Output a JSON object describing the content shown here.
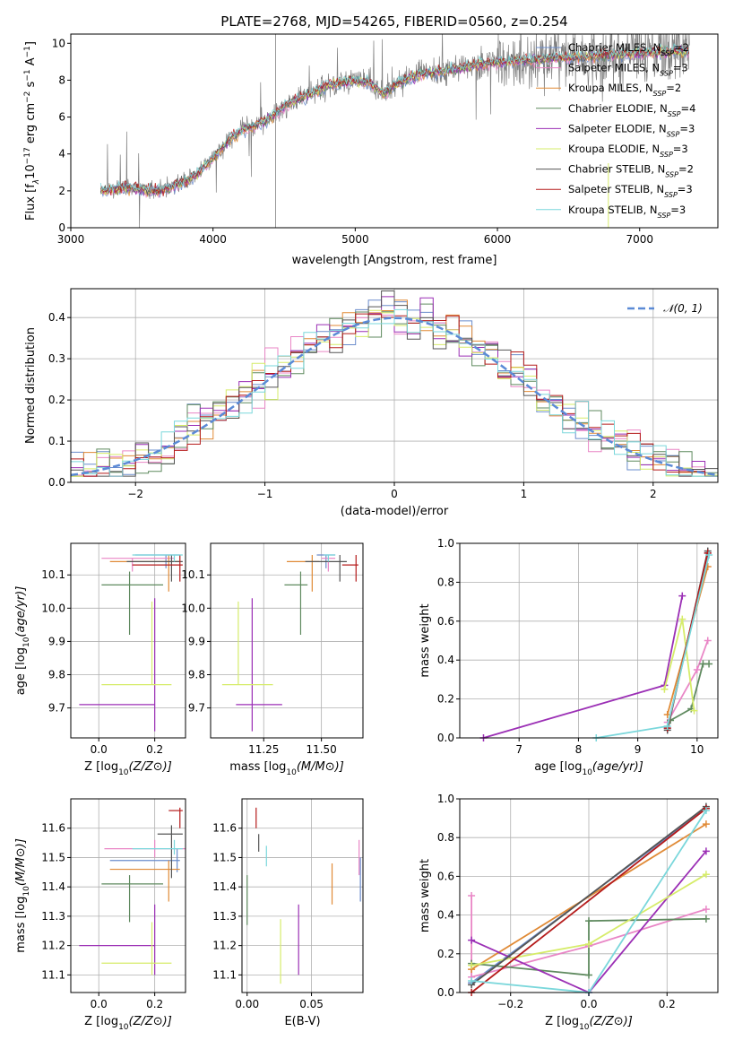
{
  "figure": {
    "title": "PLATE=2768, MJD=54265, FIBERID=0560, z=0.254"
  },
  "colors": {
    "Chabrier MILES": "#6a8ccc",
    "Salpeter MILES": "#e986c6",
    "Kroupa MILES": "#e08a36",
    "Chabrier ELODIE": "#5f8a5f",
    "Salpeter ELODIE": "#9b2fb5",
    "Kroupa ELODIE": "#d6ec6a",
    "Chabrier STELIB": "#555555",
    "Salpeter STELIB": "#b51b1b",
    "Kroupa STELIB": "#7ad7db",
    "data": "#808080",
    "normal": "#5b8ad6"
  },
  "chart_data": [
    {
      "id": "spectrum",
      "type": "line",
      "xlabel": "wavelength [Angstrom, rest frame]",
      "ylabel": "Flux [f_λ 10^-17 erg cm^-2 s^-1 A^-1]",
      "xlim": [
        3000,
        7550
      ],
      "ylim": [
        0,
        10.5
      ],
      "xticks": [
        3000,
        4000,
        5000,
        6000,
        7000
      ],
      "yticks": [
        0,
        2,
        4,
        6,
        8,
        10
      ],
      "legend_position": "top-right",
      "legend": [
        {
          "model": "Chabrier MILES",
          "label": "Chabrier MILES, N",
          "sub": "SSP",
          "suffix": "=2"
        },
        {
          "model": "Salpeter MILES",
          "label": "Salpeter MILES, N",
          "sub": "SSP",
          "suffix": "=3"
        },
        {
          "model": "Kroupa MILES",
          "label": "Kroupa MILES, N",
          "sub": "SSP",
          "suffix": "=2"
        },
        {
          "model": "Chabrier ELODIE",
          "label": "Chabrier ELODIE, N",
          "sub": "SSP",
          "suffix": "=4"
        },
        {
          "model": "Salpeter ELODIE",
          "label": "Salpeter ELODIE, N",
          "sub": "SSP",
          "suffix": "=3"
        },
        {
          "model": "Kroupa ELODIE",
          "label": "Kroupa ELODIE, N",
          "sub": "SSP",
          "suffix": "=3"
        },
        {
          "model": "Chabrier STELIB",
          "label": "Chabrier STELIB, N",
          "sub": "SSP",
          "suffix": "=2"
        },
        {
          "model": "Salpeter STELIB",
          "label": "Salpeter STELIB, N",
          "sub": "SSP",
          "suffix": "=3"
        },
        {
          "model": "Kroupa STELIB",
          "label": "Kroupa STELIB, N",
          "sub": "SSP",
          "suffix": "=3"
        }
      ],
      "continuum": {
        "x": [
          3200,
          3300,
          3400,
          3500,
          3600,
          3700,
          3800,
          3900,
          4000,
          4100,
          4200,
          4300,
          4400,
          4500,
          4600,
          4700,
          4800,
          4900,
          5000,
          5100,
          5200,
          5300,
          5400,
          5500,
          5600,
          5700,
          5800,
          5900,
          6000,
          6200,
          6400,
          6600,
          6800,
          7000,
          7200,
          7350
        ],
        "y": [
          2.0,
          2.1,
          2.2,
          2.1,
          2.0,
          2.2,
          2.5,
          3.0,
          3.8,
          4.7,
          5.3,
          5.6,
          6.0,
          6.6,
          7.0,
          7.3,
          7.7,
          7.9,
          8.0,
          7.9,
          7.3,
          7.9,
          8.2,
          8.4,
          8.5,
          8.6,
          8.8,
          8.9,
          9.0,
          9.1,
          9.2,
          9.3,
          9.4,
          9.5,
          9.6,
          9.6
        ]
      }
    },
    {
      "id": "residuals",
      "type": "line",
      "xlabel": "(data-model)/error",
      "ylabel": "Normed distribution",
      "xlim": [
        -2.5,
        2.5
      ],
      "ylim": [
        0,
        0.47
      ],
      "xticks": [
        -2,
        -1,
        0,
        1,
        2
      ],
      "yticks": [
        0.0,
        0.1,
        0.2,
        0.3,
        0.4
      ],
      "legend_position": "top-right",
      "legend_label": "𝒩(0, 1)",
      "normal": {
        "mean": 0,
        "sigma": 1
      }
    },
    {
      "id": "age-vs-Z",
      "type": "scatter",
      "xlabel": "Z [log10(Z/Z⊙)]",
      "ylabel": "age  [log10(age/yr)]",
      "xlim": [
        -0.1,
        0.31
      ],
      "ylim": [
        9.61,
        10.195
      ],
      "xticks": [
        0.0,
        0.2
      ],
      "yticks": [
        9.7,
        9.8,
        9.9,
        10.0,
        10.1
      ],
      "points": [
        {
          "model": "Chabrier MILES",
          "x": 0.24,
          "y": 10.16,
          "xerr": [
            0.11,
            0.05
          ],
          "yerr": [
            0.04,
            0.0
          ]
        },
        {
          "model": "Salpeter MILES",
          "x": 0.12,
          "y": 10.15,
          "xerr": [
            0.11,
            0.15
          ],
          "yerr": [
            0.04,
            0.0
          ]
        },
        {
          "model": "Kroupa MILES",
          "x": 0.25,
          "y": 10.14,
          "xerr": [
            0.21,
            0.04
          ],
          "yerr": [
            0.09,
            0.02
          ]
        },
        {
          "model": "Chabrier ELODIE",
          "x": 0.11,
          "y": 10.07,
          "xerr": [
            0.1,
            0.12
          ],
          "yerr": [
            0.15,
            0.04
          ]
        },
        {
          "model": "Salpeter ELODIE",
          "x": 0.2,
          "y": 9.71,
          "xerr": [
            0.27,
            0.0
          ],
          "yerr": [
            0.08,
            0.32
          ]
        },
        {
          "model": "Kroupa ELODIE",
          "x": 0.19,
          "y": 9.77,
          "xerr": [
            0.18,
            0.07
          ],
          "yerr": [
            0.0,
            0.25
          ]
        },
        {
          "model": "Chabrier STELIB",
          "x": 0.26,
          "y": 10.14,
          "xerr": [
            0.16,
            0.04
          ],
          "yerr": [
            0.06,
            0.02
          ]
        },
        {
          "model": "Salpeter STELIB",
          "x": 0.29,
          "y": 10.13,
          "xerr": [
            0.17,
            0.01
          ],
          "yerr": [
            0.05,
            0.03
          ]
        },
        {
          "model": "Kroupa STELIB",
          "x": 0.27,
          "y": 10.16,
          "xerr": [
            0.15,
            0.03
          ],
          "yerr": [
            0.02,
            0.0
          ]
        }
      ]
    },
    {
      "id": "age-vs-mass",
      "type": "scatter",
      "xlabel": "mass [log10(M/M⊙)]",
      "ylabel": "",
      "xlim": [
        11.02,
        11.68
      ],
      "ylim": [
        9.61,
        10.195
      ],
      "xticks": [
        11.25,
        11.5
      ],
      "yticks": [
        9.7,
        9.8,
        9.9,
        10.0,
        10.1
      ],
      "points": [
        {
          "model": "Chabrier MILES",
          "x": 11.52,
          "y": 10.16,
          "xerr": [
            0.04,
            0.04
          ],
          "yerr": [
            0.04,
            0.0
          ]
        },
        {
          "model": "Salpeter MILES",
          "x": 11.53,
          "y": 10.15,
          "xerr": [
            0.03,
            0.03
          ],
          "yerr": [
            0.04,
            0.0
          ]
        },
        {
          "model": "Kroupa MILES",
          "x": 11.46,
          "y": 10.14,
          "xerr": [
            0.11,
            0.03
          ],
          "yerr": [
            0.09,
            0.02
          ]
        },
        {
          "model": "Chabrier ELODIE",
          "x": 11.41,
          "y": 10.07,
          "xerr": [
            0.07,
            0.03
          ],
          "yerr": [
            0.15,
            0.04
          ]
        },
        {
          "model": "Salpeter ELODIE",
          "x": 11.2,
          "y": 9.71,
          "xerr": [
            0.07,
            0.13
          ],
          "yerr": [
            0.08,
            0.32
          ]
        },
        {
          "model": "Kroupa ELODIE",
          "x": 11.14,
          "y": 9.77,
          "xerr": [
            0.07,
            0.15
          ],
          "yerr": [
            0.0,
            0.25
          ]
        },
        {
          "model": "Chabrier STELIB",
          "x": 11.58,
          "y": 10.14,
          "xerr": [
            0.15,
            0.03
          ],
          "yerr": [
            0.06,
            0.02
          ]
        },
        {
          "model": "Salpeter STELIB",
          "x": 11.65,
          "y": 10.13,
          "xerr": [
            0.06,
            0.01
          ],
          "yerr": [
            0.05,
            0.03
          ]
        },
        {
          "model": "Kroupa STELIB",
          "x": 11.53,
          "y": 10.16,
          "xerr": [
            0.02,
            0.03
          ],
          "yerr": [
            0.02,
            0.0
          ]
        }
      ]
    },
    {
      "id": "weight-vs-age",
      "type": "line",
      "xlabel": "age  [log10(age/yr)]",
      "ylabel": "mass weight",
      "xlim": [
        6.0,
        10.35
      ],
      "ylim": [
        0,
        1.0
      ],
      "xticks": [
        7,
        8,
        9,
        10
      ],
      "yticks": [
        0.0,
        0.2,
        0.4,
        0.6,
        0.8,
        1.0
      ],
      "series": [
        {
          "model": "Chabrier MILES",
          "x": [
            9.5,
            10.18
          ],
          "y": [
            0.05,
            0.95
          ]
        },
        {
          "model": "Salpeter MILES",
          "x": [
            9.5,
            10.0,
            10.18
          ],
          "y": [
            0.08,
            0.35,
            0.5
          ]
        },
        {
          "model": "Kroupa MILES",
          "x": [
            9.5,
            10.18
          ],
          "y": [
            0.12,
            0.88
          ]
        },
        {
          "model": "Chabrier ELODIE",
          "x": [
            9.55,
            9.9,
            10.1,
            10.2
          ],
          "y": [
            0.09,
            0.15,
            0.38,
            0.38
          ]
        },
        {
          "model": "Salpeter ELODIE",
          "x": [
            6.4,
            9.45,
            9.75
          ],
          "y": [
            0.0,
            0.27,
            0.73
          ]
        },
        {
          "model": "Kroupa ELODIE",
          "x": [
            9.45,
            9.75,
            9.95
          ],
          "y": [
            0.25,
            0.61,
            0.14
          ]
        },
        {
          "model": "Chabrier STELIB",
          "x": [
            9.5,
            10.18
          ],
          "y": [
            0.04,
            0.96
          ]
        },
        {
          "model": "Salpeter STELIB",
          "x": [
            9.5,
            10.18
          ],
          "y": [
            0.05,
            0.95
          ]
        },
        {
          "model": "Kroupa STELIB",
          "x": [
            8.3,
            9.5,
            10.2
          ],
          "y": [
            0.0,
            0.06,
            0.94
          ]
        }
      ]
    },
    {
      "id": "mass-vs-Z",
      "type": "scatter",
      "xlabel": "Z [log10(Z/Z⊙)]",
      "ylabel": "mass [log10(M/M⊙)]",
      "xlim": [
        -0.1,
        0.31
      ],
      "ylim": [
        11.04,
        11.7
      ],
      "xticks": [
        0.0,
        0.2
      ],
      "yticks": [
        11.1,
        11.2,
        11.3,
        11.4,
        11.5,
        11.6
      ],
      "points": [
        {
          "model": "Chabrier MILES",
          "x": 0.28,
          "y": 11.49,
          "xerr": [
            0.24,
            0.01
          ],
          "yerr": [
            0.04,
            0.04
          ]
        },
        {
          "model": "Salpeter MILES",
          "x": 0.2,
          "y": 11.53,
          "xerr": [
            0.18,
            0.11
          ],
          "yerr": [
            0.03,
            0.03
          ]
        },
        {
          "model": "Kroupa MILES",
          "x": 0.25,
          "y": 11.46,
          "xerr": [
            0.21,
            0.04
          ],
          "yerr": [
            0.11,
            0.03
          ]
        },
        {
          "model": "Chabrier ELODIE",
          "x": 0.11,
          "y": 11.41,
          "xerr": [
            0.1,
            0.12
          ],
          "yerr": [
            0.13,
            0.03
          ]
        },
        {
          "model": "Salpeter ELODIE",
          "x": 0.2,
          "y": 11.2,
          "xerr": [
            0.27,
            0.0
          ],
          "yerr": [
            0.1,
            0.14
          ]
        },
        {
          "model": "Kroupa ELODIE",
          "x": 0.19,
          "y": 11.14,
          "xerr": [
            0.18,
            0.07
          ],
          "yerr": [
            0.04,
            0.14
          ]
        },
        {
          "model": "Chabrier STELIB",
          "x": 0.26,
          "y": 11.58,
          "xerr": [
            0.05,
            0.04
          ],
          "yerr": [
            0.15,
            0.03
          ]
        },
        {
          "model": "Salpeter STELIB",
          "x": 0.29,
          "y": 11.66,
          "xerr": [
            0.04,
            0.01
          ],
          "yerr": [
            0.06,
            0.01
          ]
        },
        {
          "model": "Kroupa STELIB",
          "x": 0.27,
          "y": 11.53,
          "xerr": [
            0.15,
            0.03
          ],
          "yerr": [
            0.02,
            0.03
          ]
        }
      ]
    },
    {
      "id": "mass-vs-ebv",
      "type": "scatter",
      "xlabel": "E(B-V)",
      "ylabel": "",
      "xlim": [
        -0.004,
        0.09
      ],
      "ylim": [
        11.04,
        11.7
      ],
      "xticks": [
        0.0,
        0.05
      ],
      "yticks": [
        11.1,
        11.2,
        11.3,
        11.4,
        11.5,
        11.6
      ],
      "points": [
        {
          "model": "Chabrier MILES",
          "x": 0.088,
          "y": 11.4,
          "xerr": [
            0,
            0
          ],
          "yerr": [
            0.05,
            0.1
          ]
        },
        {
          "model": "Salpeter MILES",
          "x": 0.087,
          "y": 11.48,
          "xerr": [
            0,
            0
          ],
          "yerr": [
            0.04,
            0.08
          ]
        },
        {
          "model": "Kroupa MILES",
          "x": 0.066,
          "y": 11.41,
          "xerr": [
            0,
            0
          ],
          "yerr": [
            0.07,
            0.07
          ]
        },
        {
          "model": "Chabrier ELODIE",
          "x": 0.0,
          "y": 11.36,
          "xerr": [
            0,
            0
          ],
          "yerr": [
            0.09,
            0.08
          ]
        },
        {
          "model": "Salpeter ELODIE",
          "x": 0.04,
          "y": 11.22,
          "xerr": [
            0,
            0
          ],
          "yerr": [
            0.12,
            0.12
          ]
        },
        {
          "model": "Kroupa ELODIE",
          "x": 0.026,
          "y": 11.18,
          "xerr": [
            0,
            0
          ],
          "yerr": [
            0.11,
            0.11
          ]
        },
        {
          "model": "Chabrier STELIB",
          "x": 0.009,
          "y": 11.55,
          "xerr": [
            0,
            0
          ],
          "yerr": [
            0.03,
            0.03
          ]
        },
        {
          "model": "Salpeter STELIB",
          "x": 0.007,
          "y": 11.63,
          "xerr": [
            0,
            0
          ],
          "yerr": [
            0.03,
            0.04
          ]
        },
        {
          "model": "Kroupa STELIB",
          "x": 0.015,
          "y": 11.5,
          "xerr": [
            0,
            0
          ],
          "yerr": [
            0.03,
            0.04
          ]
        }
      ]
    },
    {
      "id": "weight-vs-Z",
      "type": "line",
      "xlabel": "Z [log10(Z/Z⊙)]",
      "ylabel": "mass weight",
      "xlim": [
        -0.33,
        0.33
      ],
      "ylim": [
        0,
        1.0
      ],
      "xticks": [
        -0.2,
        0.0,
        0.2
      ],
      "yticks": [
        0.0,
        0.2,
        0.4,
        0.6,
        0.8,
        1.0
      ],
      "series": [
        {
          "model": "Chabrier MILES",
          "x": [
            -0.3,
            0.3
          ],
          "y": [
            0.05,
            0.95
          ]
        },
        {
          "model": "Salpeter MILES",
          "x": [
            -0.3,
            -0.3,
            0.0,
            0.3
          ],
          "y": [
            0.5,
            0.08,
            0.24,
            0.43
          ]
        },
        {
          "model": "Kroupa MILES",
          "x": [
            -0.3,
            0.3
          ],
          "y": [
            0.12,
            0.87
          ]
        },
        {
          "model": "Chabrier ELODIE",
          "x": [
            -0.3,
            0.0,
            0.0,
            0.3
          ],
          "y": [
            0.15,
            0.09,
            0.37,
            0.38
          ]
        },
        {
          "model": "Salpeter ELODIE",
          "x": [
            -0.3,
            0.0,
            0.3
          ],
          "y": [
            0.27,
            0.0,
            0.73
          ]
        },
        {
          "model": "Kroupa ELODIE",
          "x": [
            -0.3,
            0.0,
            0.3
          ],
          "y": [
            0.14,
            0.25,
            0.61
          ]
        },
        {
          "model": "Chabrier STELIB",
          "x": [
            -0.3,
            0.3
          ],
          "y": [
            0.04,
            0.96
          ]
        },
        {
          "model": "Salpeter STELIB",
          "x": [
            -0.3,
            0.3
          ],
          "y": [
            0.0,
            0.95
          ]
        },
        {
          "model": "Kroupa STELIB",
          "x": [
            -0.3,
            0.0,
            0.3
          ],
          "y": [
            0.06,
            0.0,
            0.94
          ]
        }
      ]
    }
  ]
}
